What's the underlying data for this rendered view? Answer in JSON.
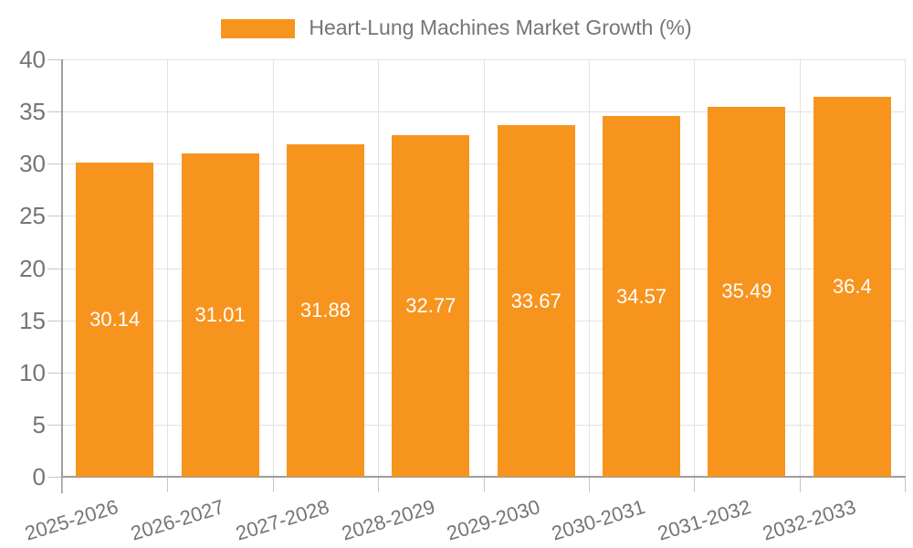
{
  "legend": {
    "label": "Heart-Lung Machines Market Growth (%)"
  },
  "chart_data": {
    "type": "bar",
    "title": "Heart-Lung Machines Market Growth (%)",
    "categories": [
      "2025-2026",
      "2026-2027",
      "2027-2028",
      "2028-2029",
      "2029-2030",
      "2030-2031",
      "2031-2032",
      "2032-2033"
    ],
    "values": [
      30.14,
      31.01,
      31.88,
      32.77,
      33.67,
      34.57,
      35.49,
      36.4
    ],
    "value_labels": [
      "30.14",
      "31.01",
      "31.88",
      "32.77",
      "33.67",
      "34.57",
      "35.49",
      "36.4"
    ],
    "xlabel": "",
    "ylabel": "",
    "ylim": [
      0,
      40
    ],
    "yticks": [
      0,
      5,
      10,
      15,
      20,
      25,
      30,
      35,
      40
    ],
    "grid": true,
    "legend_position": "top-center",
    "colors": {
      "bar": "#F7941E",
      "bar_value_text": "#FFFFFF",
      "axis_line": "#9E9E9E",
      "grid_line": "#E2E2E2",
      "tick_line": "#C6C6C6",
      "tick_text": "#757575",
      "legend_text": "#757575",
      "background": "#FFFFFF"
    }
  }
}
